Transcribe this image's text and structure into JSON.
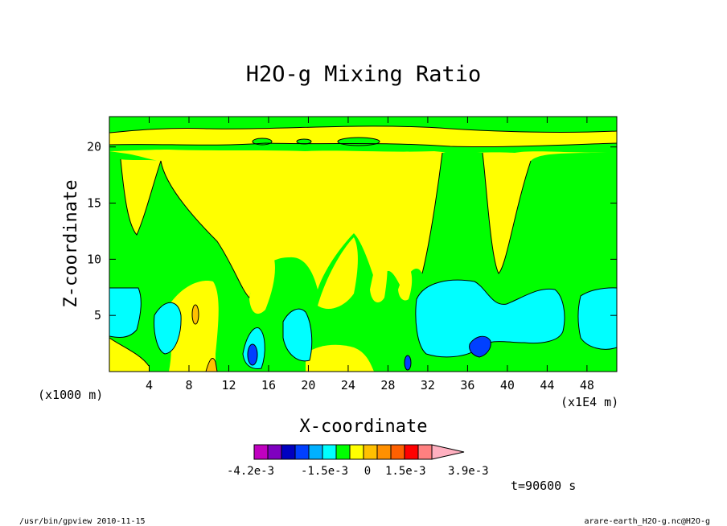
{
  "chart_data": {
    "type": "heatmap",
    "title": "H2O-g Mixing Ratio",
    "xlabel": "X-coordinate",
    "ylabel": "Z-coordinate",
    "x_unit": "(x1000 m)",
    "x_unit_right": "(x1E4 m)",
    "x_ticks": [
      "4",
      "8",
      "12",
      "16",
      "20",
      "24",
      "28",
      "32",
      "36",
      "40",
      "44",
      "48"
    ],
    "y_ticks": [
      "5",
      "10",
      "15",
      "20"
    ],
    "xlim": [
      0,
      51
    ],
    "ylim": [
      0,
      22.7
    ],
    "colorbar": {
      "colors": [
        "#c000c0",
        "#7f00c0",
        "#0000c0",
        "#0040ff",
        "#00b0ff",
        "#00ffff",
        "#00ff00",
        "#ffff00",
        "#ffc000",
        "#ff9000",
        "#ff6000",
        "#ff0000",
        "#ff8080",
        "#ffb0c0"
      ],
      "labels": [
        "-4.2e-3",
        "-1.5e-3",
        "0",
        "1.5e-3",
        "3.9e-3"
      ]
    },
    "time_label": "t=90600 s"
  },
  "footer": {
    "left": "/usr/bin/gpview   2010-11-15",
    "right": "arare-earth_H2O-g.nc@H2O-g"
  }
}
